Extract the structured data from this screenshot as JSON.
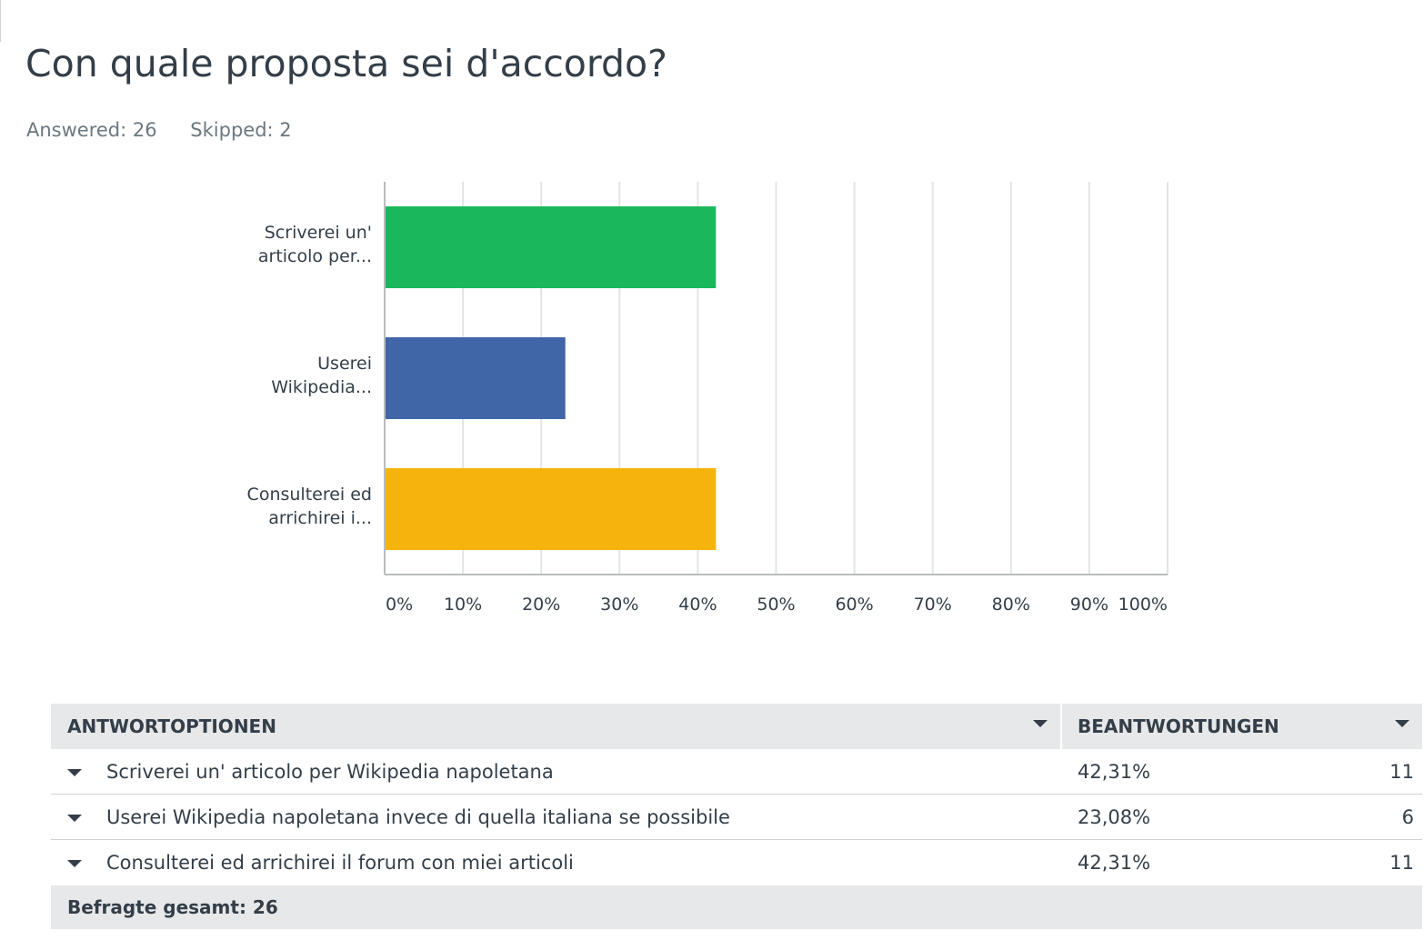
{
  "question": {
    "title": "Con quale proposta sei d'accordo?",
    "answered": "Answered: 26",
    "skipped": "Skipped: 2"
  },
  "colors": {
    "green": "#1ab75c",
    "blue": "#4066a8",
    "yellow": "#f5b30c",
    "grid": "#e3e4e5",
    "axis": "#b9bcbe"
  },
  "chart_data": {
    "type": "bar",
    "orientation": "horizontal",
    "categories": [
      [
        "Scriverei un'",
        "articolo per..."
      ],
      [
        "Userei",
        "Wikipedia..."
      ],
      [
        "Consulterei ed",
        "arrichirei i..."
      ]
    ],
    "values": [
      42.31,
      23.08,
      42.31
    ],
    "bar_colors": [
      "#1ab75c",
      "#4066a8",
      "#f5b30c"
    ],
    "xlim": [
      0,
      100
    ],
    "ticks": [
      "0%",
      "10%",
      "20%",
      "30%",
      "40%",
      "50%",
      "60%",
      "70%",
      "80%",
      "90%",
      "100%"
    ],
    "grid": true
  },
  "table": {
    "header_options": "ANTWORTOPTIONEN",
    "header_answers": "BEANTWORTUNGEN",
    "rows": [
      {
        "label": "Scriverei un' articolo per Wikipedia napoletana",
        "percent": "42,31%",
        "count": "11"
      },
      {
        "label": "Userei Wikipedia napoletana invece di quella italiana se possibile",
        "percent": "23,08%",
        "count": "6"
      },
      {
        "label": "Consulterei ed arrichirei il forum con miei articoli",
        "percent": "42,31%",
        "count": "11"
      }
    ],
    "total": "Befragte gesamt: 26"
  }
}
